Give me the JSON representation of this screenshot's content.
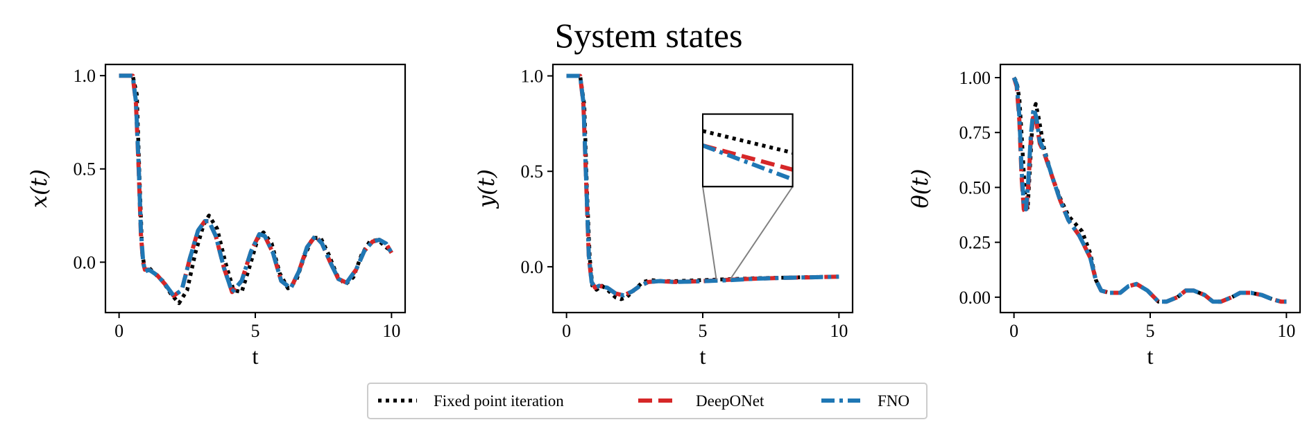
{
  "chart_data": {
    "type": "line",
    "title": "System states",
    "legend": {
      "placement": "bottom-center",
      "entries": [
        {
          "label": "Fixed point iteration",
          "color": "#000000",
          "style": "dotted"
        },
        {
          "label": "DeepONet",
          "color": "#d62728",
          "style": "dashed"
        },
        {
          "label": "FNO",
          "color": "#1f77b4",
          "style": "dashdot"
        }
      ]
    },
    "panels": [
      {
        "ylabel": "x(t)",
        "xlabel": "t",
        "xlim": [
          -0.5,
          10.5
        ],
        "ylim": [
          -0.27,
          1.06
        ],
        "xticks": [
          0,
          5,
          10
        ],
        "xtick_labels": [
          "0",
          "5",
          "10"
        ],
        "yticks": [
          1.0,
          0.5,
          0.0
        ],
        "ytick_labels": [
          "1.0",
          "0.5",
          "0.0"
        ],
        "series": [
          {
            "name": "Fixed point iteration",
            "x": [
              0,
              0.5,
              0.65,
              0.75,
              0.85,
              0.95,
              1.1,
              1.3,
              1.6,
              1.9,
              2.2,
              2.5,
              2.8,
              3.1,
              3.3,
              3.6,
              3.9,
              4.2,
              4.5,
              4.8,
              5.1,
              5.3,
              5.6,
              5.9,
              6.2,
              6.5,
              6.8,
              7.1,
              7.4,
              7.7,
              8.0,
              8.3,
              8.6,
              8.9,
              9.2,
              9.5,
              9.8,
              10
            ],
            "y": [
              1.0,
              1.0,
              0.9,
              0.45,
              0.05,
              -0.04,
              -0.03,
              -0.06,
              -0.1,
              -0.17,
              -0.22,
              -0.15,
              0.05,
              0.2,
              0.25,
              0.18,
              0.0,
              -0.15,
              -0.16,
              -0.02,
              0.13,
              0.16,
              0.1,
              -0.06,
              -0.14,
              -0.1,
              0.03,
              0.13,
              0.13,
              0.04,
              -0.07,
              -0.12,
              -0.08,
              0.04,
              0.11,
              0.12,
              0.08,
              0.06
            ]
          },
          {
            "name": "DeepONet",
            "x": [
              0,
              0.5,
              0.62,
              0.72,
              0.8,
              0.88,
              0.95,
              1.1,
              1.4,
              1.7,
              2.0,
              2.3,
              2.6,
              2.9,
              3.15,
              3.3,
              3.55,
              3.85,
              4.15,
              4.5,
              4.85,
              5.15,
              5.35,
              5.65,
              5.95,
              6.3,
              6.6,
              6.9,
              7.2,
              7.45,
              7.75,
              8.05,
              8.35,
              8.7,
              9.0,
              9.3,
              9.55,
              9.8,
              10
            ],
            "y": [
              1.0,
              1.0,
              0.85,
              0.5,
              0.15,
              0.0,
              -0.04,
              -0.04,
              -0.07,
              -0.12,
              -0.18,
              -0.15,
              0.02,
              0.17,
              0.22,
              0.22,
              0.14,
              -0.03,
              -0.16,
              -0.1,
              0.06,
              0.15,
              0.14,
              0.05,
              -0.1,
              -0.14,
              -0.05,
              0.08,
              0.14,
              0.1,
              0.0,
              -0.09,
              -0.11,
              -0.04,
              0.06,
              0.11,
              0.12,
              0.1,
              0.05
            ]
          },
          {
            "name": "FNO",
            "x": [
              0,
              0.5,
              0.62,
              0.72,
              0.8,
              0.88,
              0.95,
              1.1,
              1.4,
              1.7,
              2.0,
              2.3,
              2.6,
              2.9,
              3.15,
              3.3,
              3.55,
              3.85,
              4.15,
              4.5,
              4.85,
              5.15,
              5.35,
              5.65,
              5.95,
              6.3,
              6.6,
              6.9,
              7.2,
              7.45,
              7.75,
              8.05,
              8.35,
              8.7,
              9.0,
              9.3,
              9.55,
              9.8,
              10
            ],
            "y": [
              1.0,
              1.0,
              0.86,
              0.52,
              0.17,
              0.01,
              -0.05,
              -0.04,
              -0.07,
              -0.12,
              -0.18,
              -0.15,
              0.02,
              0.17,
              0.22,
              0.22,
              0.14,
              -0.03,
              -0.16,
              -0.1,
              0.06,
              0.15,
              0.14,
              0.05,
              -0.1,
              -0.14,
              -0.05,
              0.08,
              0.14,
              0.1,
              0.0,
              -0.09,
              -0.11,
              -0.04,
              0.06,
              0.11,
              0.12,
              0.1,
              0.05
            ]
          }
        ]
      },
      {
        "ylabel": "y(t)",
        "xlabel": "t",
        "xlim": [
          -0.5,
          10.5
        ],
        "ylim": [
          -0.24,
          1.06
        ],
        "xticks": [
          0,
          5,
          10
        ],
        "xtick_labels": [
          "0",
          "5",
          "10"
        ],
        "yticks": [
          1.0,
          0.5,
          0.0
        ],
        "ytick_labels": [
          "1.0",
          "0.5",
          "0.0"
        ],
        "inset": {
          "x_range": [
            5.5,
            6.0
          ],
          "y_range": [
            -0.075,
            -0.06
          ],
          "box_y_range": [
            0.42,
            0.8
          ],
          "box_x_range": [
            5.0,
            8.3
          ]
        },
        "series": [
          {
            "name": "Fixed point iteration",
            "x": [
              0,
              0.5,
              0.65,
              0.75,
              0.85,
              0.95,
              1.1,
              1.3,
              1.5,
              1.8,
              2.0,
              2.2,
              2.5,
              2.8,
              3.1,
              3.5,
              4.0,
              5.0,
              6.0,
              7.0,
              8.0,
              9.0,
              10
            ],
            "y": [
              1.0,
              1.0,
              0.85,
              0.4,
              0.05,
              -0.1,
              -0.12,
              -0.1,
              -0.12,
              -0.16,
              -0.17,
              -0.16,
              -0.12,
              -0.08,
              -0.07,
              -0.075,
              -0.075,
              -0.07,
              -0.065,
              -0.06,
              -0.057,
              -0.054,
              -0.052
            ]
          },
          {
            "name": "DeepONet",
            "x": [
              0,
              0.5,
              0.62,
              0.72,
              0.82,
              0.92,
              1.05,
              1.2,
              1.5,
              1.8,
              2.1,
              2.4,
              2.7,
              3.0,
              3.4,
              4.0,
              5.0,
              6.0,
              7.0,
              8.0,
              9.0,
              10
            ],
            "y": [
              1.0,
              1.0,
              0.85,
              0.45,
              0.05,
              -0.08,
              -0.11,
              -0.1,
              -0.11,
              -0.14,
              -0.15,
              -0.13,
              -0.1,
              -0.08,
              -0.075,
              -0.08,
              -0.075,
              -0.068,
              -0.062,
              -0.058,
              -0.055,
              -0.052
            ]
          },
          {
            "name": "FNO",
            "x": [
              0,
              0.5,
              0.62,
              0.72,
              0.82,
              0.92,
              1.05,
              1.2,
              1.5,
              1.8,
              2.1,
              2.4,
              2.7,
              3.0,
              3.4,
              4.0,
              5.0,
              6.0,
              7.0,
              8.0,
              9.0,
              10
            ],
            "y": [
              1.0,
              1.0,
              0.86,
              0.46,
              0.06,
              -0.08,
              -0.11,
              -0.1,
              -0.11,
              -0.14,
              -0.15,
              -0.13,
              -0.1,
              -0.08,
              -0.075,
              -0.08,
              -0.076,
              -0.07,
              -0.062,
              -0.058,
              -0.055,
              -0.052
            ]
          }
        ]
      },
      {
        "ylabel": "θ(t)",
        "xlabel": "t",
        "xlim": [
          -0.5,
          10.5
        ],
        "ylim": [
          -0.07,
          1.06
        ],
        "xticks": [
          0,
          5,
          10
        ],
        "xtick_labels": [
          "0",
          "5",
          "10"
        ],
        "yticks": [
          1.0,
          0.75,
          0.5,
          0.25,
          0.0
        ],
        "ytick_labels": [
          "1.00",
          "0.75",
          "0.50",
          "0.25",
          "0.00"
        ],
        "series": [
          {
            "name": "Fixed point iteration",
            "x": [
              0,
              0.1,
              0.2,
              0.3,
              0.4,
              0.5,
              0.6,
              0.7,
              0.8,
              0.9,
              1.1,
              1.4,
              1.7,
              2.0,
              2.5,
              2.8,
              3.0,
              3.2,
              3.5,
              3.9,
              4.2,
              4.5,
              4.9,
              5.3,
              5.6,
              6.0,
              6.3,
              6.6,
              7.0,
              7.3,
              7.6,
              8.0,
              8.3,
              8.7,
              9.1,
              9.5,
              9.8,
              10
            ],
            "y": [
              1.0,
              0.98,
              0.9,
              0.7,
              0.48,
              0.4,
              0.62,
              0.84,
              0.88,
              0.82,
              0.68,
              0.55,
              0.45,
              0.37,
              0.3,
              0.2,
              0.08,
              0.03,
              0.02,
              0.02,
              0.05,
              0.06,
              0.03,
              -0.02,
              -0.02,
              0.0,
              0.03,
              0.03,
              0.01,
              -0.02,
              -0.02,
              0.0,
              0.02,
              0.02,
              0.01,
              -0.01,
              -0.02,
              -0.02
            ]
          },
          {
            "name": "DeepONet",
            "x": [
              0,
              0.1,
              0.2,
              0.28,
              0.36,
              0.44,
              0.52,
              0.62,
              0.72,
              0.82,
              0.95,
              1.1,
              1.4,
              1.7,
              2.0,
              2.4,
              2.8,
              3.0,
              3.2,
              3.5,
              3.9,
              4.2,
              4.5,
              4.9,
              5.3,
              5.6,
              6.0,
              6.3,
              6.6,
              7.0,
              7.3,
              7.6,
              8.0,
              8.3,
              8.7,
              9.1,
              9.5,
              9.8,
              10
            ],
            "y": [
              1.0,
              0.96,
              0.8,
              0.55,
              0.4,
              0.38,
              0.5,
              0.72,
              0.84,
              0.8,
              0.7,
              0.66,
              0.55,
              0.44,
              0.35,
              0.28,
              0.18,
              0.08,
              0.03,
              0.02,
              0.02,
              0.05,
              0.06,
              0.03,
              -0.02,
              -0.02,
              0.0,
              0.03,
              0.03,
              0.01,
              -0.02,
              -0.02,
              0.0,
              0.02,
              0.02,
              0.01,
              -0.01,
              -0.02,
              -0.02
            ]
          },
          {
            "name": "FNO",
            "x": [
              0,
              0.1,
              0.2,
              0.28,
              0.36,
              0.44,
              0.52,
              0.62,
              0.72,
              0.82,
              0.95,
              1.1,
              1.4,
              1.7,
              2.0,
              2.4,
              2.8,
              3.0,
              3.2,
              3.5,
              3.9,
              4.2,
              4.5,
              4.9,
              5.3,
              5.6,
              6.0,
              6.3,
              6.6,
              7.0,
              7.3,
              7.6,
              8.0,
              8.3,
              8.7,
              9.1,
              9.5,
              9.8,
              10
            ],
            "y": [
              1.0,
              0.97,
              0.82,
              0.58,
              0.42,
              0.4,
              0.52,
              0.74,
              0.86,
              0.82,
              0.71,
              0.67,
              0.55,
              0.44,
              0.35,
              0.28,
              0.18,
              0.08,
              0.03,
              0.02,
              0.02,
              0.05,
              0.06,
              0.03,
              -0.02,
              -0.02,
              0.0,
              0.03,
              0.03,
              0.01,
              -0.02,
              -0.02,
              0.0,
              0.02,
              0.02,
              0.01,
              -0.01,
              -0.02,
              -0.02
            ]
          }
        ]
      }
    ]
  }
}
